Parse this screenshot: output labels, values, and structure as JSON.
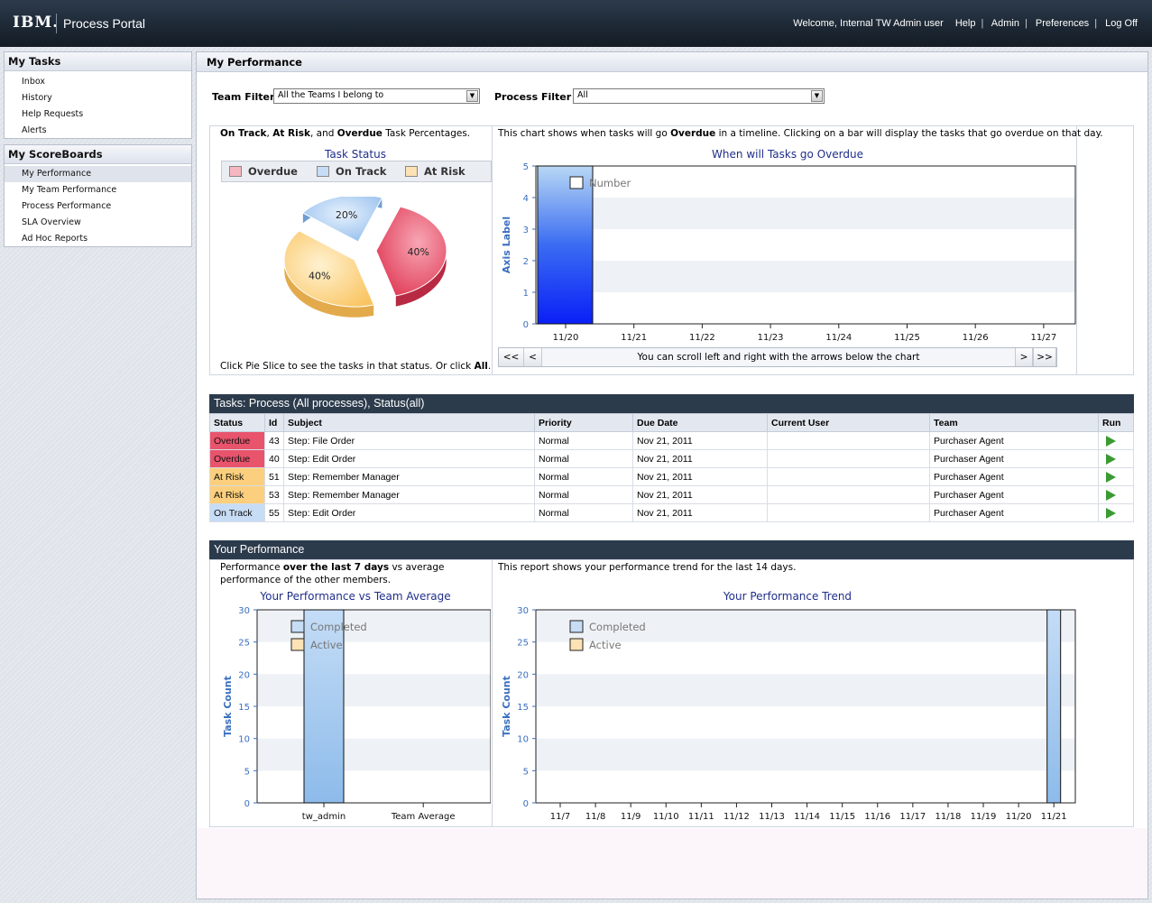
{
  "header": {
    "logo": "IBM.",
    "app_title": "Process Portal",
    "welcome": "Welcome, Internal TW Admin user",
    "nav": [
      "Help",
      "Admin",
      "Preferences",
      "Log Off"
    ]
  },
  "sidebar": {
    "tasks_title": "My Tasks",
    "tasks_items": [
      "Inbox",
      "History",
      "Help Requests",
      "Alerts"
    ],
    "scoreboards_title": "My ScoreBoards",
    "scoreboards_items": [
      "My Performance",
      "My Team Performance",
      "Process Performance",
      "SLA Overview",
      "Ad Hoc Reports"
    ],
    "selected": "My Performance"
  },
  "main": {
    "title": "My Performance",
    "team_filter_label": "Team Filter",
    "team_filter_value": "All the Teams I belong to",
    "process_filter_label": "Process Filter",
    "process_filter_value": "All"
  },
  "status_panel": {
    "desc_b1": "On Track",
    "desc_t1": ", ",
    "desc_b2": "At Risk",
    "desc_t2": ", and ",
    "desc_b3": "Overdue",
    "desc_t3": " Task Percentages.",
    "footer_text": "Click Pie Slice to see the tasks in that status. Or click ",
    "footer_all": "All",
    "footer_end": "."
  },
  "overdue_panel": {
    "desc_t1": "This chart shows when tasks will go ",
    "desc_b1": "Overdue",
    "desc_t2": " in a timeline. Clicking on a bar will display the tasks that go overdue on that day.",
    "scroll_first": "<<",
    "scroll_prev": "<",
    "scroll_text": "You can scroll left and right with the arrows below the chart",
    "scroll_next": ">",
    "scroll_last": ">>"
  },
  "tasks_table": {
    "title": "Tasks: Process (All processes), Status(all)",
    "columns": [
      "Status",
      "Id",
      "Subject",
      "Priority",
      "Due Date",
      "Current User",
      "Team",
      "Run"
    ],
    "rows": [
      {
        "status": "Overdue",
        "id": "43",
        "subject": "Step: File Order",
        "priority": "Normal",
        "due": "Nov 21, 2011",
        "user": "",
        "team": "Purchaser Agent"
      },
      {
        "status": "Overdue",
        "id": "40",
        "subject": "Step: Edit Order",
        "priority": "Normal",
        "due": "Nov 21, 2011",
        "user": "",
        "team": "Purchaser Agent"
      },
      {
        "status": "At Risk",
        "id": "51",
        "subject": "Step: Remember Manager",
        "priority": "Normal",
        "due": "Nov 21, 2011",
        "user": "",
        "team": "Purchaser Agent"
      },
      {
        "status": "At Risk",
        "id": "53",
        "subject": "Step: Remember Manager",
        "priority": "Normal",
        "due": "Nov 21, 2011",
        "user": "",
        "team": "Purchaser Agent"
      },
      {
        "status": "On Track",
        "id": "55",
        "subject": "Step: Edit Order",
        "priority": "Normal",
        "due": "Nov 21, 2011",
        "user": "",
        "team": "Purchaser Agent"
      }
    ]
  },
  "your_perf": {
    "title": "Your Performance",
    "desc1_t1": "Performance ",
    "desc1_b1": "over the last 7 days",
    "desc1_t2": " vs average",
    "desc1_line2": "performance of the other members.",
    "desc2": "This report shows your performance trend for the last 14 days."
  },
  "colors": {
    "overdue": "#e8546c",
    "at_risk": "#fbcf7d",
    "on_track": "#c7dcf5",
    "header_bar": "#2c3b4c",
    "chart_title": "#1f2d8a"
  },
  "chart_data": [
    {
      "type": "pie",
      "title": "Task Status",
      "legend": [
        "Overdue",
        "On Track",
        "At Risk"
      ],
      "categories": [
        "Overdue",
        "On Track",
        "At Risk"
      ],
      "values": [
        40,
        20,
        40
      ],
      "labels": [
        "40%",
        "20%",
        "40%"
      ],
      "colors": [
        "#e8546c",
        "#a9cbf0",
        "#fbd17e"
      ],
      "legend_position": "top"
    },
    {
      "type": "bar",
      "title": "When will Tasks go Overdue",
      "ylabel": "Axis Label",
      "categories": [
        "11/20",
        "11/21",
        "11/22",
        "11/23",
        "11/24",
        "11/25",
        "11/26",
        "11/27"
      ],
      "series": [
        {
          "name": "Number",
          "values": [
            5,
            0,
            0,
            0,
            0,
            0,
            0,
            0
          ]
        }
      ],
      "ylim": [
        0,
        5
      ],
      "yticks": [
        0,
        1,
        2,
        3,
        4,
        5
      ],
      "legend_position": "top-left"
    },
    {
      "type": "bar",
      "title": "Your Performance vs Team Average",
      "ylabel": "Task Count",
      "categories": [
        "tw_admin",
        "Team Average"
      ],
      "series": [
        {
          "name": "Completed",
          "values": [
            30,
            0
          ]
        },
        {
          "name": "Active",
          "values": [
            0,
            0
          ]
        }
      ],
      "ylim": [
        0,
        30
      ],
      "yticks": [
        0,
        5,
        10,
        15,
        20,
        25,
        30
      ],
      "legend_position": "top-left"
    },
    {
      "type": "bar",
      "title": "Your Performance Trend",
      "ylabel": "Task Count",
      "categories": [
        "11/7",
        "11/8",
        "11/9",
        "11/10",
        "11/11",
        "11/12",
        "11/13",
        "11/14",
        "11/15",
        "11/16",
        "11/17",
        "11/18",
        "11/19",
        "11/20",
        "11/21"
      ],
      "series": [
        {
          "name": "Completed",
          "values": [
            0,
            0,
            0,
            0,
            0,
            0,
            0,
            0,
            0,
            0,
            0,
            0,
            0,
            0,
            30
          ]
        },
        {
          "name": "Active",
          "values": [
            0,
            0,
            0,
            0,
            0,
            0,
            0,
            0,
            0,
            0,
            0,
            0,
            0,
            0,
            0
          ]
        }
      ],
      "ylim": [
        0,
        30
      ],
      "yticks": [
        0,
        5,
        10,
        15,
        20,
        25,
        30
      ],
      "legend_position": "top-left"
    }
  ]
}
